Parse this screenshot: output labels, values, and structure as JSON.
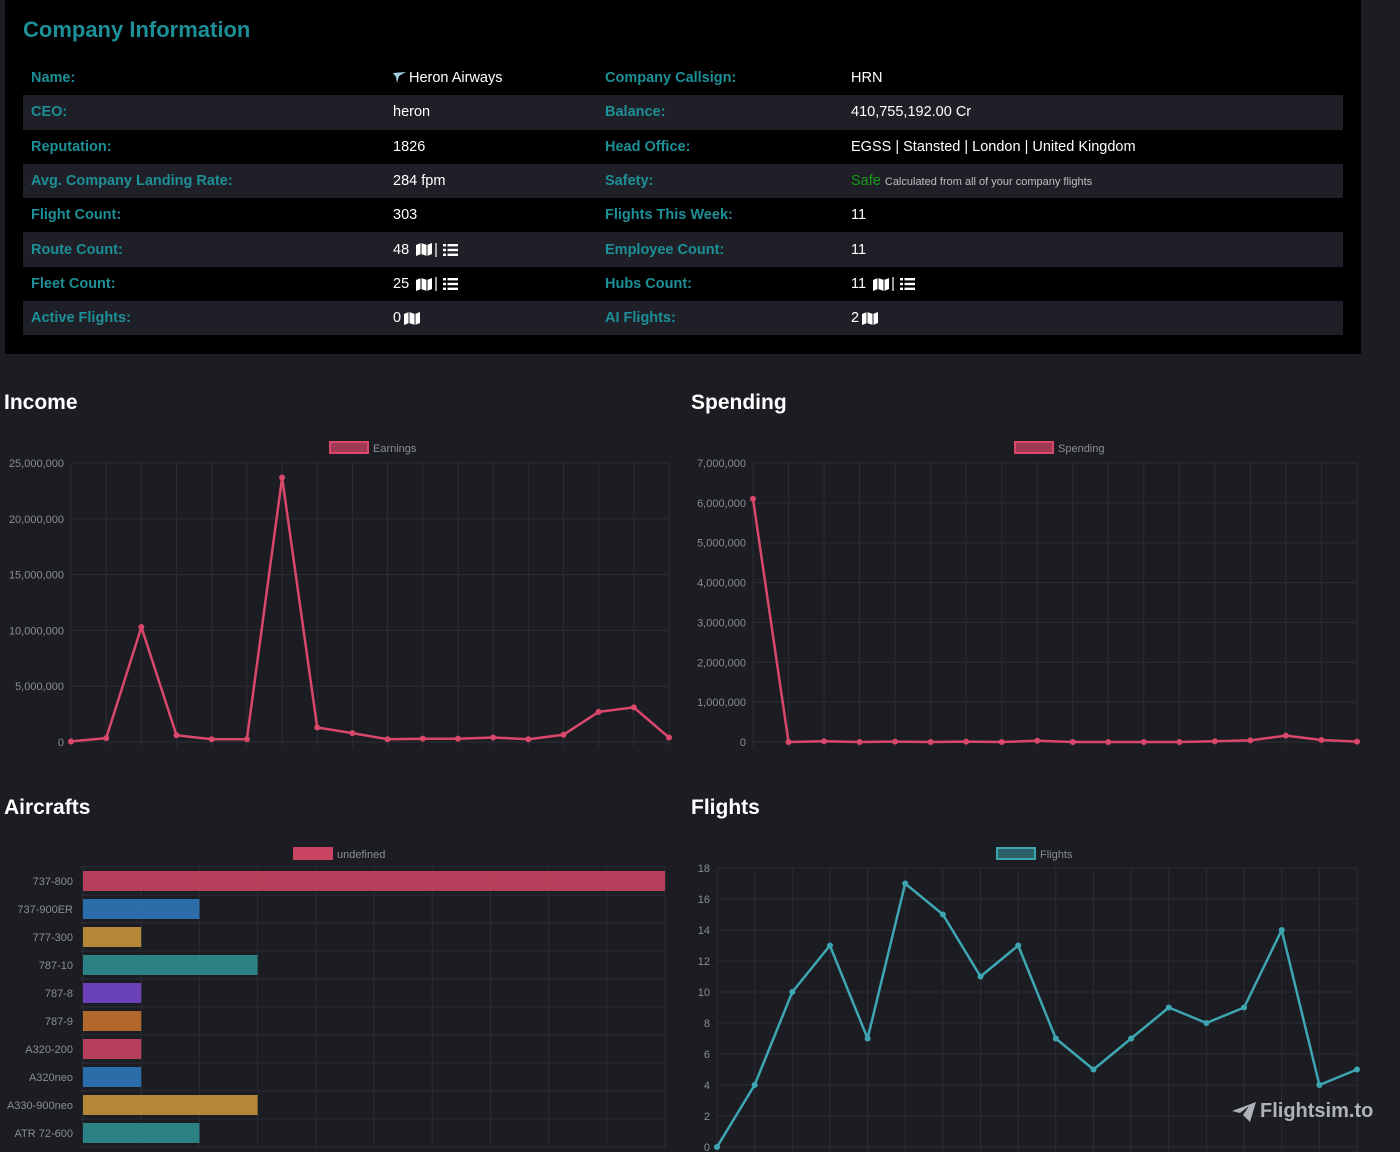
{
  "company": {
    "title": "Company Information",
    "rows": [
      {
        "l1": "Name:",
        "v1": "Heron Airways",
        "l2": "Company Callsign:",
        "v2": "HRN"
      },
      {
        "l1": "CEO:",
        "v1": "heron",
        "l2": "Balance:",
        "v2": "410,755,192.00 Cr"
      },
      {
        "l1": "Reputation:",
        "v1": "1826",
        "l2": "Head Office:",
        "v2": "EGSS | Stansted | London | United Kingdom"
      },
      {
        "l1": "Avg. Company Landing Rate:",
        "v1": "284 fpm",
        "l2": "Safety:",
        "v2": "Safe",
        "v2note": "Calculated from all of your company flights"
      },
      {
        "l1": "Flight Count:",
        "v1": "303",
        "l2": "Flights This Week:",
        "v2": "11"
      },
      {
        "l1": "Route Count:",
        "v1": "48",
        "l2": "Employee Count:",
        "v2": "11"
      },
      {
        "l1": "Fleet Count:",
        "v1": "25",
        "l2": "Hubs Count:",
        "v2": "11"
      },
      {
        "l1": "Active Flights:",
        "v1": "0",
        "l2": "AI Flights:",
        "v2": "2"
      }
    ],
    "separator": "|",
    "icons": {
      "airline": "plane-icon",
      "map": "map-icon",
      "list": "list-icon"
    }
  },
  "sections": {
    "income": "Income",
    "spending": "Spending",
    "aircrafts": "Aircrafts",
    "flights": "Flights"
  },
  "colors": {
    "accent": "#1d8f97",
    "red": "#d9476a",
    "teal": "#3ea6b2",
    "safe": "#1a9a1a"
  },
  "chart_data": [
    {
      "id": "income",
      "type": "line",
      "title": "Income",
      "legend": "Earnings",
      "color": "#d9476a",
      "ylim": [
        0,
        25000000
      ],
      "yticks": [
        0,
        5000000,
        10000000,
        15000000,
        20000000,
        25000000
      ],
      "ytick_labels": [
        "0",
        "5,000,000",
        "10,000,000",
        "15,000,000",
        "20,000,000",
        "25,000,000"
      ],
      "values": [
        50000,
        350000,
        10300000,
        600000,
        250000,
        250000,
        23700000,
        1300000,
        800000,
        250000,
        300000,
        300000,
        400000,
        250000,
        650000,
        2700000,
        3100000,
        400000
      ]
    },
    {
      "id": "spending",
      "type": "line",
      "title": "Spending",
      "legend": "Spending",
      "color": "#d9476a",
      "ylim": [
        0,
        7000000
      ],
      "yticks": [
        0,
        1000000,
        2000000,
        3000000,
        4000000,
        5000000,
        6000000,
        7000000
      ],
      "ytick_labels": [
        "0",
        "1,000,000",
        "2,000,000",
        "3,000,000",
        "4,000,000",
        "5,000,000",
        "6,000,000",
        "7,000,000"
      ],
      "values": [
        6100000,
        0,
        20000,
        0,
        10000,
        0,
        10000,
        0,
        30000,
        0,
        0,
        0,
        0,
        20000,
        40000,
        160000,
        50000,
        10000
      ]
    },
    {
      "id": "aircrafts",
      "type": "bar",
      "orientation": "horizontal",
      "title": "Aircrafts",
      "legend": "undefined",
      "xlim": [
        0,
        10
      ],
      "categories": [
        "737-800",
        "737-900ER",
        "777-300",
        "787-10",
        "787-8",
        "787-9",
        "A320-200",
        "A320neo",
        "A330-900neo",
        "ATR 72-600"
      ],
      "values": [
        10,
        2,
        1,
        3,
        1,
        1,
        1,
        1,
        3,
        2
      ],
      "colors": [
        "#c94462",
        "#2e77b8",
        "#c49437",
        "#2f8d8f",
        "#7346c6",
        "#c3712c",
        "#c94462",
        "#2e77b8",
        "#c49437",
        "#2f8d8f"
      ]
    },
    {
      "id": "flights",
      "type": "line",
      "title": "Flights",
      "legend": "Flights",
      "color": "#3ea6b2",
      "ylim": [
        0,
        18
      ],
      "yticks": [
        0,
        2,
        4,
        6,
        8,
        10,
        12,
        14,
        16,
        18
      ],
      "ytick_labels": [
        "0",
        "2",
        "4",
        "6",
        "8",
        "10",
        "12",
        "14",
        "16",
        "18"
      ],
      "values": [
        0,
        4,
        10,
        13,
        7,
        17,
        15,
        11,
        13,
        7,
        5,
        7,
        9,
        8,
        9,
        14,
        4,
        5
      ]
    }
  ],
  "watermark": "Flightsim.to"
}
